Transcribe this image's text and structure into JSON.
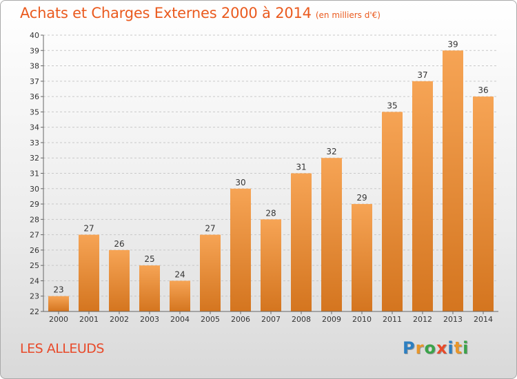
{
  "header": {
    "title": "Achats et Charges Externes 2000 à 2014",
    "subtitle": "(en milliers d'€)"
  },
  "footer": {
    "commune": "LES ALLEUDS",
    "logo": "Proxiti",
    "logo_colors": [
      "#2c7fc1",
      "#e8962a",
      "#3ba34a",
      "#e84a2a",
      "#2c7fc1",
      "#e8962a",
      "#3ba34a"
    ]
  },
  "colors": {
    "bar_top": "#f6a455",
    "bar_bottom": "#d4751f",
    "grid": "#c8c8c8",
    "title": "#ea5a1e"
  },
  "chart_data": {
    "type": "bar",
    "categories": [
      "2000",
      "2001",
      "2002",
      "2003",
      "2004",
      "2005",
      "2006",
      "2007",
      "2008",
      "2009",
      "2010",
      "2011",
      "2012",
      "2013",
      "2014"
    ],
    "values": [
      23,
      27,
      26,
      25,
      24,
      27,
      30,
      28,
      31,
      32,
      29,
      35,
      37,
      39,
      36
    ],
    "ylim": [
      22,
      40
    ],
    "ytick_step": 1,
    "grid": true,
    "data_labels": true
  }
}
